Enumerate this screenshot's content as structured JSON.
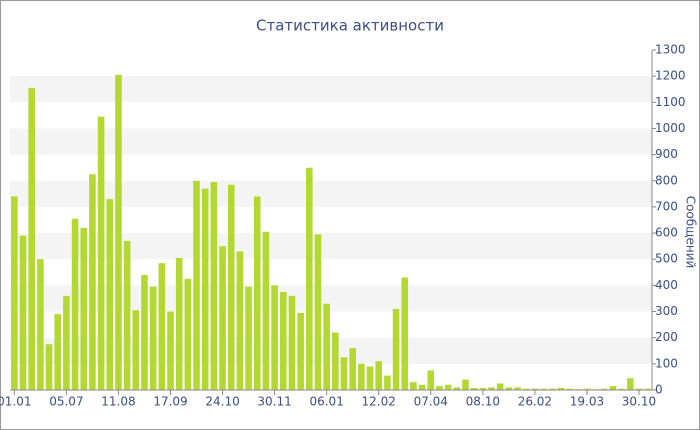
{
  "chart_data": {
    "type": "bar",
    "title": "Статистика активности",
    "y_label": "Сообщений",
    "categories": [
      "01.01",
      null,
      null,
      null,
      null,
      null,
      "05.07",
      null,
      null,
      null,
      null,
      null,
      "11.08",
      null,
      null,
      null,
      null,
      null,
      "17.09",
      null,
      null,
      null,
      null,
      null,
      "24.10",
      null,
      null,
      null,
      null,
      null,
      "30.11",
      null,
      null,
      null,
      null,
      null,
      "06.01",
      null,
      null,
      null,
      null,
      null,
      "12.02",
      null,
      null,
      null,
      null,
      null,
      "07.04",
      null,
      null,
      null,
      null,
      null,
      "08.10",
      null,
      null,
      null,
      null,
      null,
      "26.02",
      null,
      null,
      null,
      null,
      null,
      "19.03",
      null,
      null,
      null,
      null,
      null,
      "30.10",
      null
    ],
    "values": [
      740,
      590,
      1155,
      500,
      175,
      290,
      360,
      655,
      620,
      825,
      1045,
      730,
      1205,
      570,
      305,
      440,
      395,
      485,
      300,
      505,
      425,
      800,
      770,
      795,
      550,
      785,
      530,
      395,
      740,
      605,
      400,
      375,
      360,
      295,
      850,
      595,
      330,
      220,
      125,
      160,
      100,
      90,
      110,
      55,
      310,
      430,
      30,
      20,
      75,
      15,
      20,
      10,
      40,
      8,
      8,
      10,
      25,
      10,
      10,
      5,
      5,
      5,
      5,
      8,
      5,
      3,
      5,
      3,
      5,
      15,
      5,
      45,
      5,
      5
    ],
    "color": "#b4d832",
    "ylim": [
      0,
      1300
    ],
    "yticks": [
      0,
      100,
      200,
      300,
      400,
      500,
      600,
      700,
      800,
      900,
      1000,
      1100,
      1200,
      1300
    ],
    "y_axis_side": "right",
    "grid": "bands"
  }
}
